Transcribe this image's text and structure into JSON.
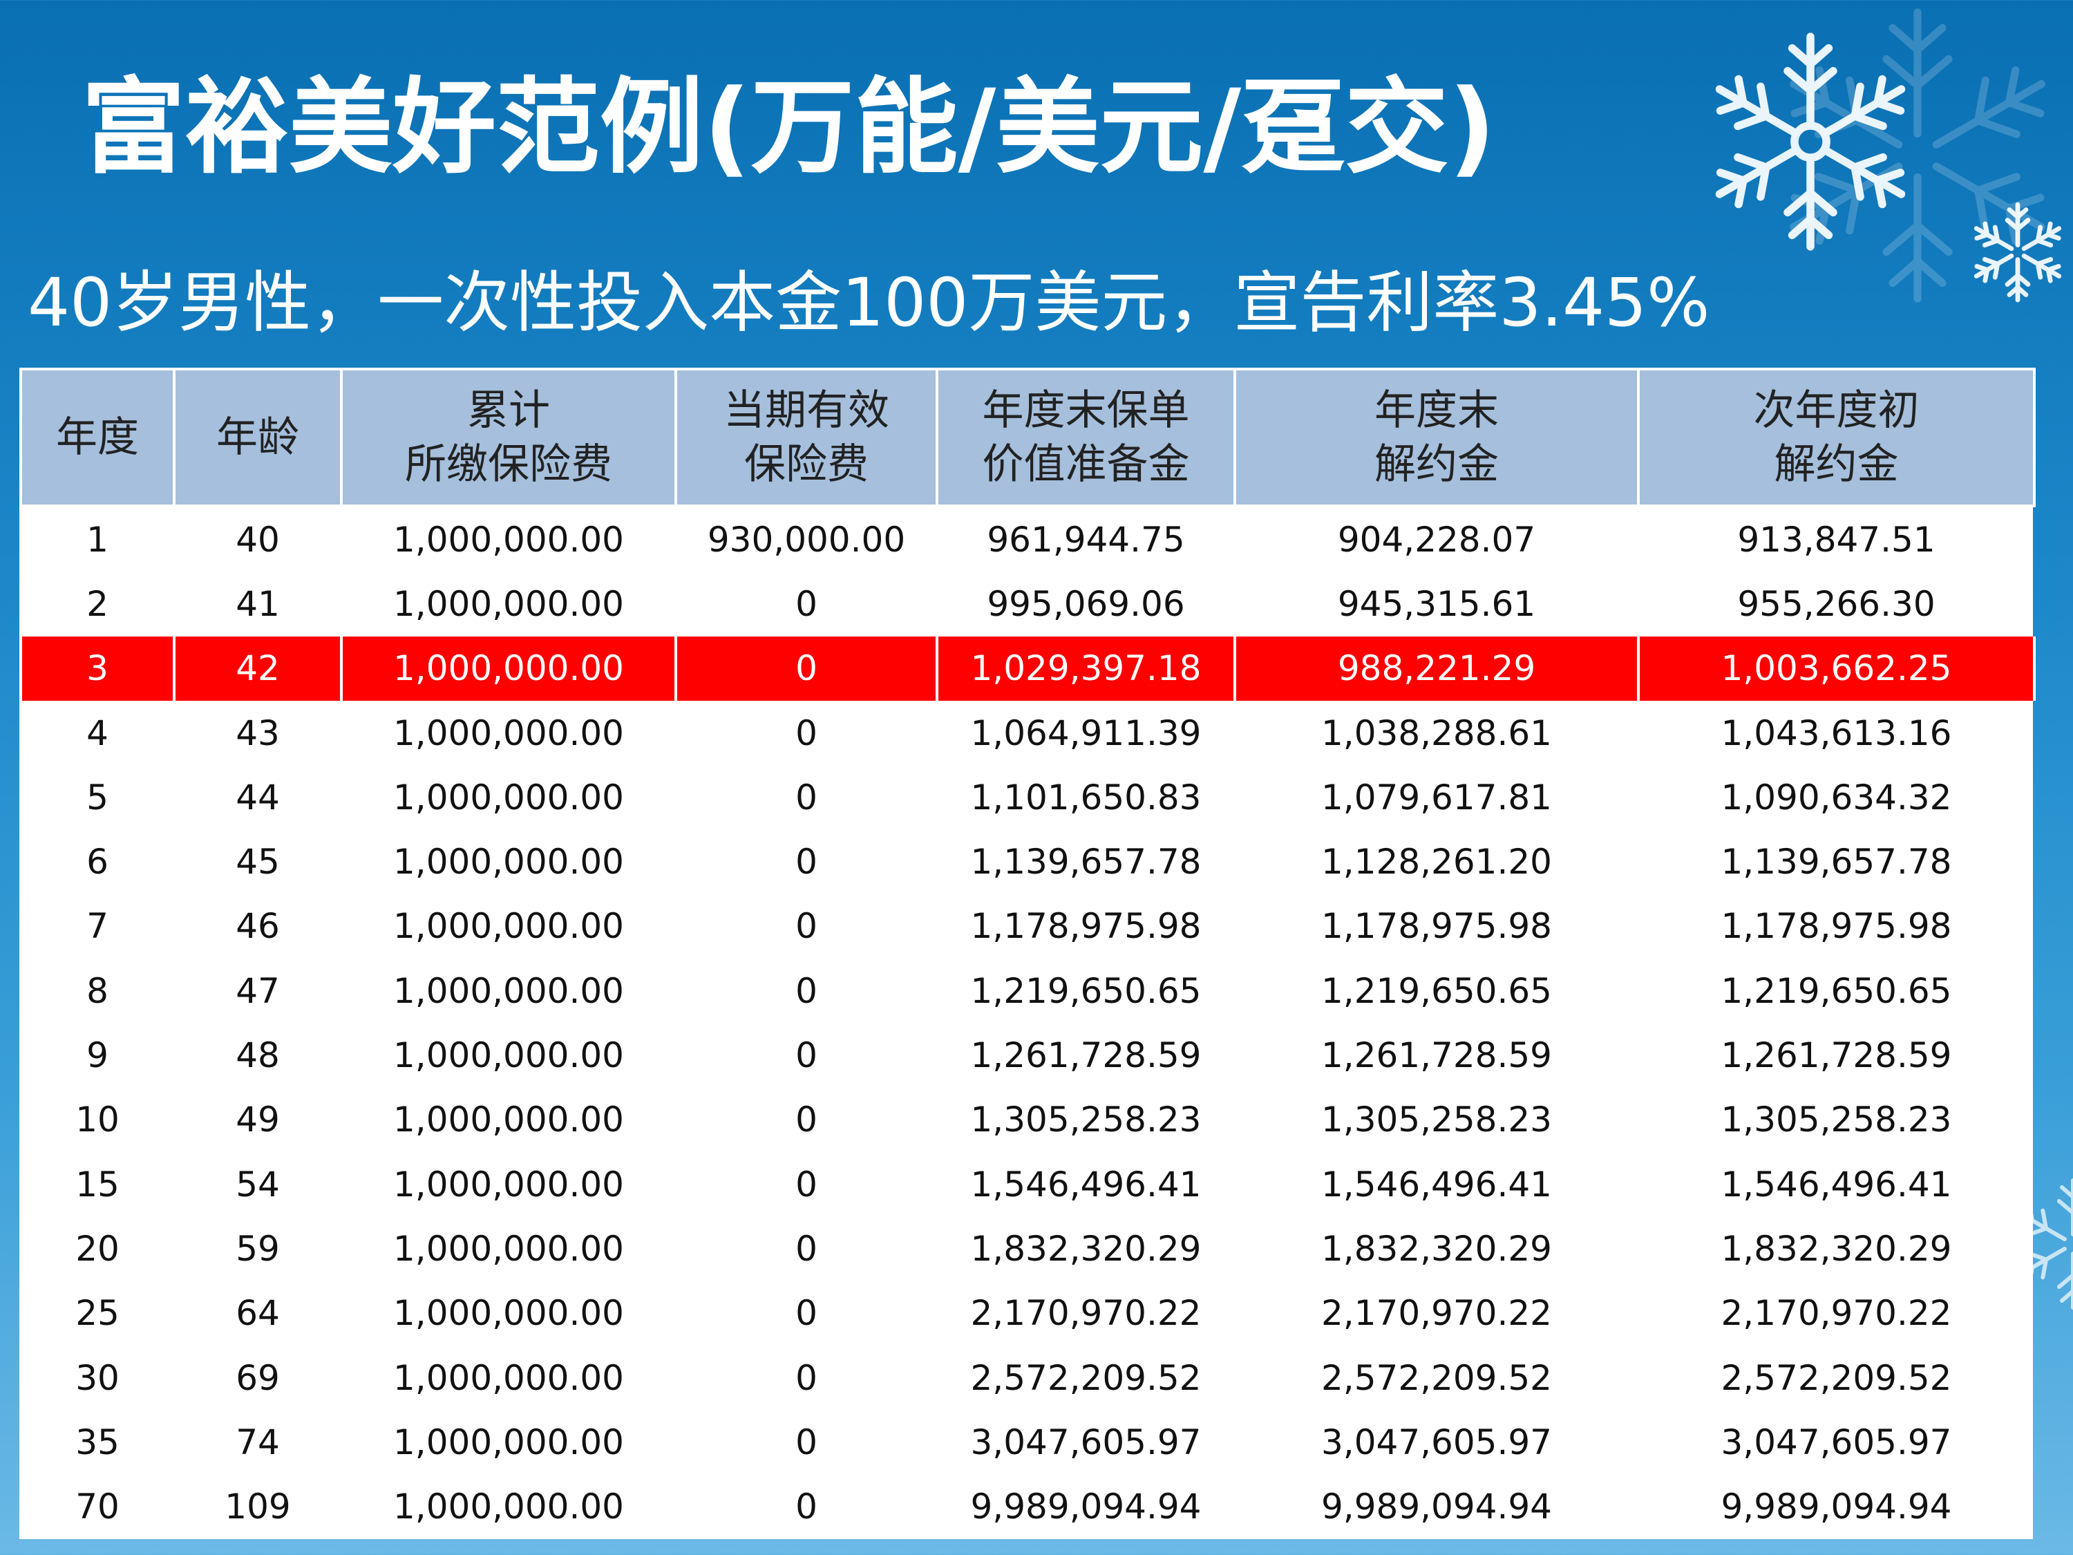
{
  "title": "富裕美好范例(万能/美元/趸交)",
  "subtitle": "40岁男性，一次性投入本金100万美元，宣告利率3.45%",
  "colors": {
    "header_bg": "#a5bfdc",
    "highlight": "#ff0000",
    "background": "#1a86c8"
  },
  "table": {
    "headers": [
      {
        "line1": "年度",
        "line2": ""
      },
      {
        "line1": "年龄",
        "line2": ""
      },
      {
        "line1": "累计",
        "line2": "所缴保险费"
      },
      {
        "line1": "当期有效",
        "line2": "保险费"
      },
      {
        "line1": "年度末保单",
        "line2": "价值准备金"
      },
      {
        "line1": "年度末",
        "line2": "解约金"
      },
      {
        "line1": "次年度初",
        "line2": "解约金"
      }
    ],
    "highlight_row": 2,
    "rows": [
      [
        "1",
        "40",
        "1,000,000.00",
        "930,000.00",
        "961,944.75",
        "904,228.07",
        "913,847.51"
      ],
      [
        "2",
        "41",
        "1,000,000.00",
        "0",
        "995,069.06",
        "945,315.61",
        "955,266.30"
      ],
      [
        "3",
        "42",
        "1,000,000.00",
        "0",
        "1,029,397.18",
        "988,221.29",
        "1,003,662.25"
      ],
      [
        "4",
        "43",
        "1,000,000.00",
        "0",
        "1,064,911.39",
        "1,038,288.61",
        "1,043,613.16"
      ],
      [
        "5",
        "44",
        "1,000,000.00",
        "0",
        "1,101,650.83",
        "1,079,617.81",
        "1,090,634.32"
      ],
      [
        "6",
        "45",
        "1,000,000.00",
        "0",
        "1,139,657.78",
        "1,128,261.20",
        "1,139,657.78"
      ],
      [
        "7",
        "46",
        "1,000,000.00",
        "0",
        "1,178,975.98",
        "1,178,975.98",
        "1,178,975.98"
      ],
      [
        "8",
        "47",
        "1,000,000.00",
        "0",
        "1,219,650.65",
        "1,219,650.65",
        "1,219,650.65"
      ],
      [
        "9",
        "48",
        "1,000,000.00",
        "0",
        "1,261,728.59",
        "1,261,728.59",
        "1,261,728.59"
      ],
      [
        "10",
        "49",
        "1,000,000.00",
        "0",
        "1,305,258.23",
        "1,305,258.23",
        "1,305,258.23"
      ],
      [
        "15",
        "54",
        "1,000,000.00",
        "0",
        "1,546,496.41",
        "1,546,496.41",
        "1,546,496.41"
      ],
      [
        "20",
        "59",
        "1,000,000.00",
        "0",
        "1,832,320.29",
        "1,832,320.29",
        "1,832,320.29"
      ],
      [
        "25",
        "64",
        "1,000,000.00",
        "0",
        "2,170,970.22",
        "2,170,970.22",
        "2,170,970.22"
      ],
      [
        "30",
        "69",
        "1,000,000.00",
        "0",
        "2,572,209.52",
        "2,572,209.52",
        "2,572,209.52"
      ],
      [
        "35",
        "74",
        "1,000,000.00",
        "0",
        "3,047,605.97",
        "3,047,605.97",
        "3,047,605.97"
      ],
      [
        "70",
        "109",
        "1,000,000.00",
        "0",
        "9,989,094.94",
        "9,989,094.94",
        "9,989,094.94"
      ]
    ]
  }
}
